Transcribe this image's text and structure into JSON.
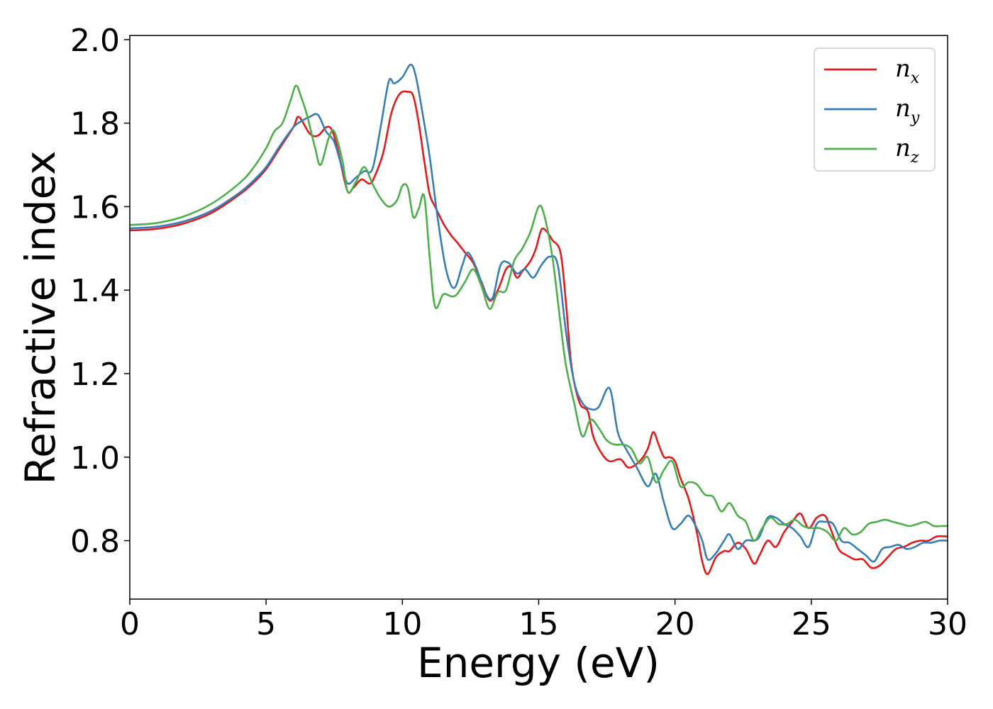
{
  "chart_data": {
    "type": "line",
    "title": "",
    "xlabel": "Energy (eV)",
    "ylabel": "Refractive index",
    "xlim": [
      0,
      30
    ],
    "ylim": [
      0.66,
      2.01
    ],
    "xticks": [
      0,
      5,
      10,
      15,
      20,
      25,
      30
    ],
    "yticks": [
      0.8,
      1.0,
      1.2,
      1.4,
      1.6,
      1.8,
      2.0
    ],
    "grid": false,
    "legend_position": "top-right",
    "series": [
      {
        "name": "n_x",
        "label_base": "n",
        "label_sub": "x",
        "color": "#e41a1c",
        "x": [
          0,
          1,
          2,
          3,
          4,
          4.5,
          5,
          5.5,
          6,
          6.2,
          6.6,
          6.9,
          7.2,
          7.4,
          7.6,
          7.8,
          8.0,
          8.2,
          8.5,
          8.8,
          9.0,
          9.3,
          9.6,
          9.9,
          10.2,
          10.4,
          10.6,
          10.8,
          11.0,
          11.2,
          11.5,
          11.8,
          12.0,
          12.3,
          12.6,
          12.9,
          13.2,
          13.5,
          13.8,
          14.0,
          14.2,
          14.4,
          14.7,
          14.9,
          15.1,
          15.3,
          15.5,
          15.8,
          16.0,
          16.2,
          16.5,
          16.8,
          17.0,
          17.3,
          17.6,
          18.0,
          18.3,
          18.7,
          19.0,
          19.2,
          19.4,
          19.6,
          19.8,
          20.0,
          20.2,
          20.5,
          20.8,
          21.0,
          21.2,
          21.5,
          21.8,
          22.0,
          22.3,
          22.6,
          22.9,
          23.1,
          23.4,
          23.7,
          24.0,
          24.3,
          24.6,
          24.9,
          25.2,
          25.5,
          25.7,
          26.0,
          26.3,
          26.6,
          26.9,
          27.2,
          27.5,
          27.8,
          28.1,
          28.4,
          28.7,
          29.0,
          29.3,
          29.6,
          30.0
        ],
        "y": [
          1.543,
          1.547,
          1.56,
          1.585,
          1.628,
          1.655,
          1.69,
          1.74,
          1.79,
          1.815,
          1.775,
          1.77,
          1.79,
          1.785,
          1.745,
          1.685,
          1.635,
          1.645,
          1.665,
          1.655,
          1.675,
          1.73,
          1.825,
          1.87,
          1.875,
          1.865,
          1.8,
          1.71,
          1.63,
          1.6,
          1.56,
          1.53,
          1.515,
          1.49,
          1.465,
          1.42,
          1.375,
          1.4,
          1.45,
          1.455,
          1.43,
          1.445,
          1.47,
          1.5,
          1.545,
          1.54,
          1.52,
          1.49,
          1.37,
          1.22,
          1.13,
          1.11,
          1.05,
          1.01,
          0.99,
          0.995,
          0.975,
          0.99,
          1.02,
          1.06,
          1.03,
          1.0,
          1.0,
          0.99,
          0.95,
          0.9,
          0.82,
          0.75,
          0.72,
          0.76,
          0.775,
          0.775,
          0.795,
          0.78,
          0.745,
          0.765,
          0.8,
          0.785,
          0.82,
          0.845,
          0.865,
          0.83,
          0.855,
          0.86,
          0.83,
          0.78,
          0.765,
          0.755,
          0.755,
          0.735,
          0.74,
          0.76,
          0.78,
          0.785,
          0.795,
          0.8,
          0.8,
          0.81,
          0.81
        ]
      },
      {
        "name": "n_y",
        "label_base": "n",
        "label_sub": "y",
        "color": "#377eb8",
        "x": [
          0,
          1,
          2,
          3,
          4,
          4.5,
          5,
          5.5,
          6,
          6.3,
          6.6,
          6.9,
          7.2,
          7.5,
          7.8,
          8.0,
          8.3,
          8.6,
          8.9,
          9.2,
          9.5,
          9.7,
          10.0,
          10.3,
          10.5,
          10.8,
          11.0,
          11.3,
          11.6,
          11.9,
          12.2,
          12.4,
          12.7,
          13.0,
          13.3,
          13.6,
          13.9,
          14.2,
          14.5,
          14.8,
          15.1,
          15.4,
          15.7,
          16.0,
          16.3,
          16.6,
          16.9,
          17.2,
          17.6,
          17.9,
          18.2,
          18.6,
          19.0,
          19.3,
          19.6,
          19.9,
          20.2,
          20.5,
          20.8,
          21.0,
          21.2,
          21.5,
          21.8,
          22.0,
          22.3,
          22.6,
          22.9,
          23.1,
          23.4,
          23.7,
          24.0,
          24.3,
          24.6,
          24.9,
          25.2,
          25.5,
          25.8,
          26.1,
          26.4,
          26.7,
          27.0,
          27.3,
          27.6,
          27.9,
          28.2,
          28.5,
          28.8,
          29.1,
          29.4,
          29.7,
          30.0
        ],
        "y": [
          1.548,
          1.552,
          1.565,
          1.59,
          1.632,
          1.66,
          1.695,
          1.745,
          1.79,
          1.805,
          1.815,
          1.82,
          1.78,
          1.755,
          1.69,
          1.655,
          1.67,
          1.685,
          1.69,
          1.79,
          1.9,
          1.895,
          1.91,
          1.94,
          1.91,
          1.8,
          1.72,
          1.57,
          1.45,
          1.405,
          1.46,
          1.49,
          1.455,
          1.4,
          1.38,
          1.46,
          1.465,
          1.44,
          1.45,
          1.43,
          1.46,
          1.48,
          1.46,
          1.3,
          1.18,
          1.13,
          1.115,
          1.12,
          1.165,
          1.06,
          1.02,
          0.975,
          0.93,
          0.96,
          0.89,
          0.83,
          0.84,
          0.86,
          0.83,
          0.8,
          0.755,
          0.77,
          0.8,
          0.815,
          0.78,
          0.8,
          0.8,
          0.81,
          0.855,
          0.855,
          0.84,
          0.83,
          0.81,
          0.785,
          0.84,
          0.845,
          0.84,
          0.8,
          0.795,
          0.78,
          0.765,
          0.75,
          0.78,
          0.785,
          0.79,
          0.78,
          0.785,
          0.795,
          0.795,
          0.8,
          0.8
        ]
      },
      {
        "name": "n_z",
        "label_base": "n",
        "label_sub": "z",
        "color": "#4daf4a",
        "x": [
          0,
          1,
          2,
          3,
          4,
          4.5,
          5,
          5.3,
          5.6,
          5.9,
          6.1,
          6.3,
          6.5,
          6.8,
          7.0,
          7.3,
          7.5,
          7.8,
          8.0,
          8.3,
          8.6,
          8.9,
          9.2,
          9.5,
          9.8,
          10.0,
          10.2,
          10.4,
          10.6,
          10.8,
          11.0,
          11.2,
          11.5,
          11.8,
          12.0,
          12.3,
          12.6,
          12.9,
          13.2,
          13.5,
          13.8,
          14.1,
          14.4,
          14.7,
          15.0,
          15.2,
          15.5,
          15.8,
          16.0,
          16.3,
          16.6,
          16.9,
          17.2,
          17.5,
          17.8,
          18.1,
          18.4,
          18.7,
          19.0,
          19.3,
          19.6,
          19.9,
          20.2,
          20.5,
          20.8,
          21.1,
          21.4,
          21.7,
          22.0,
          22.3,
          22.6,
          22.9,
          23.2,
          23.5,
          23.8,
          24.1,
          24.4,
          24.7,
          25.0,
          25.3,
          25.6,
          25.9,
          26.2,
          26.5,
          26.8,
          27.1,
          27.4,
          27.7,
          28.0,
          28.3,
          28.6,
          28.9,
          29.2,
          29.5,
          29.8,
          30.0
        ],
        "y": [
          1.556,
          1.561,
          1.577,
          1.607,
          1.655,
          1.69,
          1.74,
          1.78,
          1.8,
          1.855,
          1.89,
          1.86,
          1.82,
          1.74,
          1.7,
          1.765,
          1.78,
          1.71,
          1.635,
          1.66,
          1.695,
          1.655,
          1.62,
          1.6,
          1.615,
          1.65,
          1.645,
          1.575,
          1.595,
          1.625,
          1.48,
          1.36,
          1.39,
          1.385,
          1.39,
          1.42,
          1.45,
          1.41,
          1.355,
          1.395,
          1.4,
          1.47,
          1.5,
          1.54,
          1.6,
          1.58,
          1.48,
          1.32,
          1.22,
          1.13,
          1.05,
          1.09,
          1.07,
          1.04,
          1.03,
          1.03,
          1.02,
          0.985,
          1.0,
          0.94,
          0.97,
          0.99,
          0.93,
          0.94,
          0.935,
          0.91,
          0.905,
          0.87,
          0.89,
          0.86,
          0.845,
          0.8,
          0.83,
          0.855,
          0.84,
          0.84,
          0.85,
          0.835,
          0.83,
          0.83,
          0.82,
          0.8,
          0.83,
          0.815,
          0.82,
          0.84,
          0.845,
          0.85,
          0.845,
          0.84,
          0.835,
          0.84,
          0.845,
          0.835,
          0.835,
          0.835
        ]
      }
    ]
  }
}
